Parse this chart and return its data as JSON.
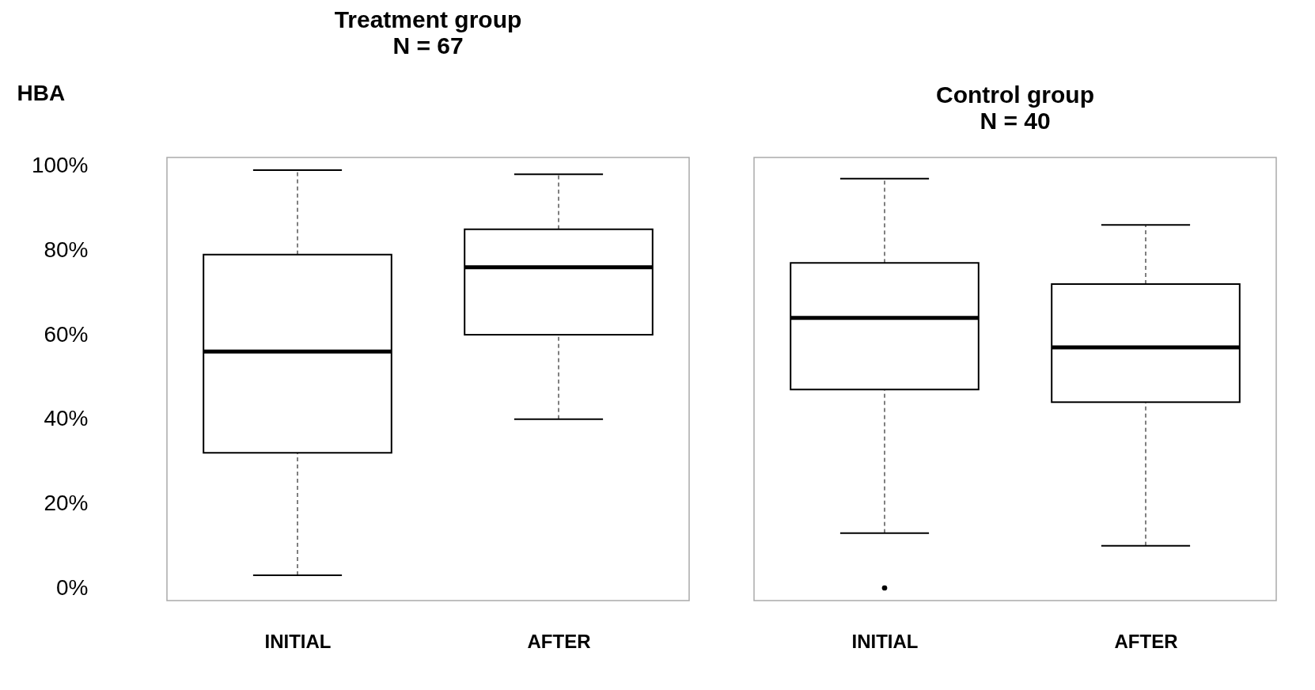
{
  "chart_data": [
    {
      "type": "box",
      "title": "Treatment group",
      "subtitle": "N = 67",
      "ylabel": "HBA",
      "categories": [
        "INITIAL",
        "AFTER"
      ],
      "ylim": [
        -3,
        102
      ],
      "yticks": [
        {
          "value": 0,
          "label": "0%"
        },
        {
          "value": 20,
          "label": "20%"
        },
        {
          "value": 40,
          "label": "40%"
        },
        {
          "value": 60,
          "label": "60%"
        },
        {
          "value": 80,
          "label": "80%"
        },
        {
          "value": 100,
          "label": "100%"
        }
      ],
      "grid": false,
      "boxes": [
        {
          "low": 3,
          "q1": 32,
          "median": 56,
          "q3": 79,
          "high": 99
        },
        {
          "low": 40,
          "q1": 60,
          "median": 76,
          "q3": 85,
          "high": 98
        }
      ]
    },
    {
      "type": "box",
      "title": "Control group",
      "subtitle": "N = 40",
      "categories": [
        "INITIAL",
        "AFTER"
      ],
      "ylim": [
        -3,
        102
      ],
      "grid": false,
      "tick_labels": "x",
      "boxes": [
        {
          "low": 13,
          "q1": 47,
          "median": 64,
          "q3": 77,
          "high": 97,
          "outliers": [
            0
          ]
        },
        {
          "low": 10,
          "q1": 44,
          "median": 57,
          "q3": 72,
          "high": 86
        }
      ]
    }
  ]
}
